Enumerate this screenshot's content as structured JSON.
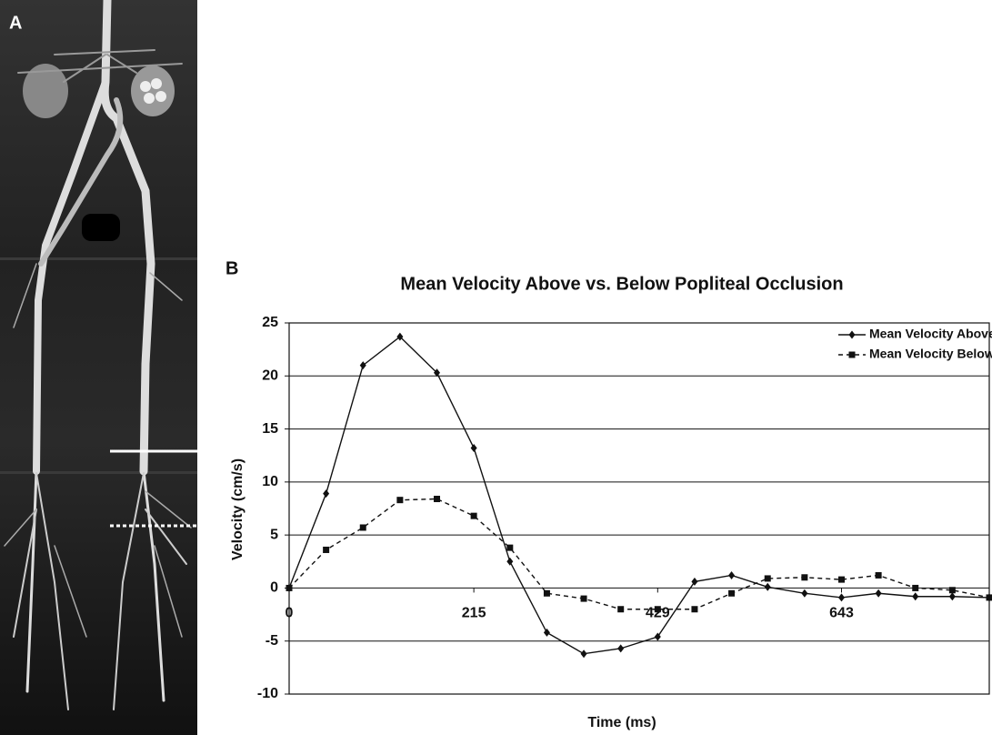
{
  "image_panel": {
    "label": "A"
  },
  "chart_data": {
    "type": "line",
    "panel_label": "B",
    "title": "Mean Velocity Above vs. Below Popliteal Occlusion",
    "x_label": "Time (ms)",
    "y_label": "Velocity (cm/s)",
    "x": [
      0,
      43,
      86,
      129,
      172,
      215,
      257,
      300,
      343,
      386,
      429,
      472,
      515,
      557,
      600,
      643,
      686,
      729,
      772,
      815
    ],
    "series": [
      {
        "name": "Mean Velocity Above",
        "color": "#111111",
        "line_style": "solid",
        "marker": "diamond",
        "values": [
          0,
          8.9,
          21,
          23.7,
          20.3,
          13.2,
          2.5,
          -4.2,
          -6.2,
          -5.7,
          -4.6,
          0.6,
          1.2,
          0.1,
          -0.5,
          -0.9,
          -0.5,
          -0.8,
          -0.8,
          -0.9
        ]
      },
      {
        "name": "Mean Velocity Below",
        "color": "#111111",
        "line_style": "dashed",
        "marker": "square",
        "values": [
          0,
          3.6,
          5.7,
          8.3,
          8.4,
          6.8,
          3.8,
          -0.5,
          -1.0,
          -2.0,
          -2.0,
          -2.0,
          -0.5,
          0.9,
          1.0,
          0.8,
          1.2,
          0,
          -0.2,
          -0.9
        ]
      }
    ],
    "xlim": [
      0,
      815
    ],
    "xticks": [
      0,
      215,
      429,
      643
    ],
    "ylim": [
      -10,
      25
    ],
    "yticks": [
      -10,
      -5,
      0,
      5,
      10,
      15,
      20,
      25
    ],
    "grid": true,
    "legend": "top-right"
  }
}
